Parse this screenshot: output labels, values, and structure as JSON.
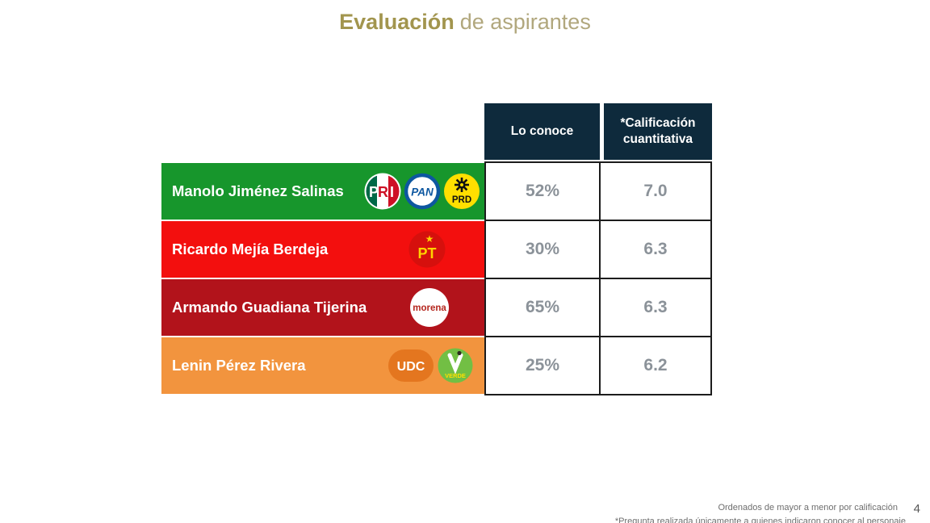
{
  "title": {
    "emphasis": "Evaluación",
    "rest": "de aspirantes"
  },
  "table": {
    "column_headers": [
      "Lo conoce",
      "*Calificación cuantitativa"
    ],
    "rows": [
      {
        "name": "Manolo Jiménez Salinas",
        "parties": [
          "PRI",
          "PAN",
          "PRD"
        ],
        "lo_conoce": "52%",
        "calificacion": "7.0",
        "color": "#17962c"
      },
      {
        "name": "Ricardo Mejía Berdeja",
        "parties": [
          "PT"
        ],
        "lo_conoce": "30%",
        "calificacion": "6.3",
        "color": "#f30f0e"
      },
      {
        "name": "Armando Guadiana Tijerina",
        "parties": [
          "MORENA"
        ],
        "lo_conoce": "65%",
        "calificacion": "6.3",
        "color": "#b2131b"
      },
      {
        "name": "Lenin Pérez Rivera",
        "parties": [
          "UDC",
          "VERDE"
        ],
        "lo_conoce": "25%",
        "calificacion": "6.2",
        "color": "#f2943e"
      }
    ]
  },
  "party_logos": {
    "PRI": {
      "label": "PRI",
      "green": "#006847",
      "white": "#ffffff",
      "red": "#ce1126"
    },
    "PAN": {
      "label": "PAN",
      "blue": "#0d57a0",
      "bg": "#ffffff"
    },
    "PRD": {
      "label": "PRD",
      "bg": "#ffdf00",
      "fg": "#111111"
    },
    "PT": {
      "label": "PT",
      "bg": "#d6100d",
      "fg": "#ffd200"
    },
    "MORENA": {
      "label": "morena",
      "bg": "#ffffff",
      "fg": "#b5261e"
    },
    "UDC": {
      "label": "UDC",
      "bg": "#e4761f",
      "fg": "#ffffff"
    },
    "VERDE": {
      "label": "VERDE",
      "bg": "#72bf44",
      "fg": "#ffffff",
      "accent": "#ffe000"
    }
  },
  "footer": {
    "note_order": "Ordenados de mayor a menor por calificación",
    "note_question": "*Pregunta realizada únicamente a quienes indicaron conocer al personaje",
    "page_number": "4"
  },
  "colors": {
    "header_bg": "#0e2a3c",
    "title_emphasis": "#a2954e",
    "title_rest": "#b1a77d",
    "value_text": "#8b9299"
  }
}
